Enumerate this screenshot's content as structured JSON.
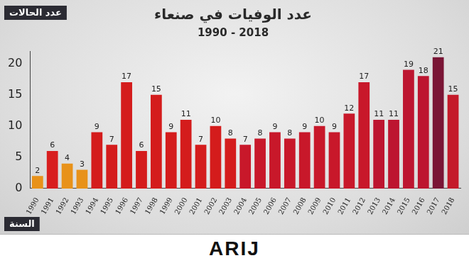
{
  "chart_data": {
    "type": "bar",
    "title": "عدد الوفيات في صنعاء",
    "subtitle": "1990 - 2018",
    "y_label": "عدد الحالات",
    "x_label": "السنة",
    "annotations": [
      "ARIJ"
    ],
    "categories": [
      "1990",
      "1991",
      "1992",
      "1993",
      "1994",
      "1995",
      "1996",
      "1997",
      "1998",
      "1999",
      "2000",
      "2001",
      "2002",
      "2003",
      "2004",
      "2005",
      "2006",
      "2007",
      "2008",
      "2009",
      "2010",
      "2011",
      "2012",
      "2013",
      "2014",
      "2015",
      "2016",
      "2017",
      "2018"
    ],
    "values": [
      2,
      6,
      4,
      3,
      9,
      7,
      17,
      6,
      15,
      9,
      11,
      7,
      10,
      8,
      7,
      8,
      9,
      8,
      9,
      10,
      9,
      12,
      17,
      11,
      11,
      19,
      18,
      21,
      15
    ],
    "colors": [
      "#e8921a",
      "#d81e1e",
      "#e8921a",
      "#e8921a",
      "#d41c1c",
      "#d41c1c",
      "#d41c1c",
      "#d41c1c",
      "#d41c1c",
      "#d41c1c",
      "#d41c1c",
      "#d41c1c",
      "#d41c1c",
      "#d41c1c",
      "#c8182a",
      "#c8182a",
      "#c8182a",
      "#c8182a",
      "#c8182a",
      "#c8182a",
      "#c8182a",
      "#c8182a",
      "#c8182a",
      "#bd1530",
      "#bd1530",
      "#bd1530",
      "#bd1530",
      "#7a1535",
      "#c41a2a"
    ],
    "ylim": [
      0,
      22
    ],
    "yticks": [
      0,
      5,
      10,
      15,
      20
    ],
    "grid": false,
    "data_labels": true
  }
}
